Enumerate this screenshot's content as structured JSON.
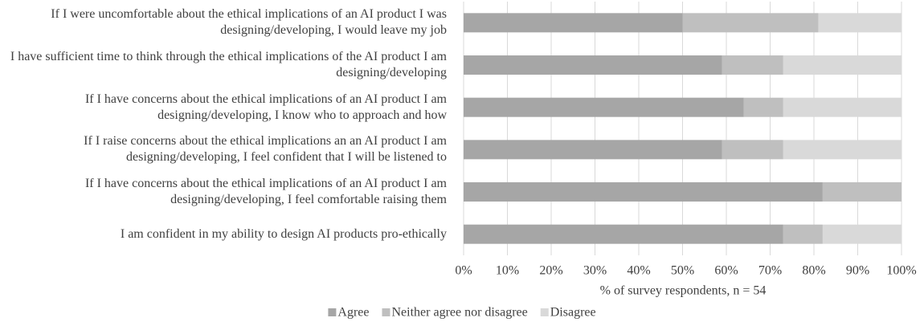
{
  "chart_data": {
    "type": "stacked-barh",
    "xlabel": "% of survey respondents, n = 54",
    "categories": [
      "If I were uncomfortable about the ethical implications of an AI product I was designing/developing, I would leave my job",
      "I have sufficient time to think through the ethical implications of the AI product I am designing/developing",
      "If I have concerns about the ethical implications of an AI product I am designing/developing, I know who to approach and how",
      "If I raise concerns about the ethical implications an an AI product I am designing/developing, I feel confident that I will be listened to",
      "If I have concerns about the ethical implications of an AI product I am designing/developing, I feel comfortable raising them",
      "I am confident in my ability to design AI products pro-ethically"
    ],
    "series": [
      {
        "name": "Agree",
        "color": "#a6a6a6",
        "values": [
          50,
          59,
          64,
          59,
          82,
          73
        ]
      },
      {
        "name": "Neither agree nor disagree",
        "color": "#bfbfbf",
        "values": [
          31,
          14,
          9,
          14,
          18,
          9
        ]
      },
      {
        "name": "Disagree",
        "color": "#d9d9d9",
        "values": [
          19,
          27,
          27,
          27,
          0,
          18
        ]
      }
    ],
    "xlim": [
      0,
      100
    ],
    "xticks": [
      {
        "value": 0,
        "label": "0%"
      },
      {
        "value": 10,
        "label": "10%"
      },
      {
        "value": 20,
        "label": "20%"
      },
      {
        "value": 30,
        "label": "30%"
      },
      {
        "value": 40,
        "label": "40%"
      },
      {
        "value": 50,
        "label": "50%"
      },
      {
        "value": 60,
        "label": "60%"
      },
      {
        "value": 70,
        "label": "70%"
      },
      {
        "value": 80,
        "label": "80%"
      },
      {
        "value": 90,
        "label": "90%"
      },
      {
        "value": 100,
        "label": "100%"
      }
    ],
    "grid": true,
    "legend": "bottom"
  }
}
